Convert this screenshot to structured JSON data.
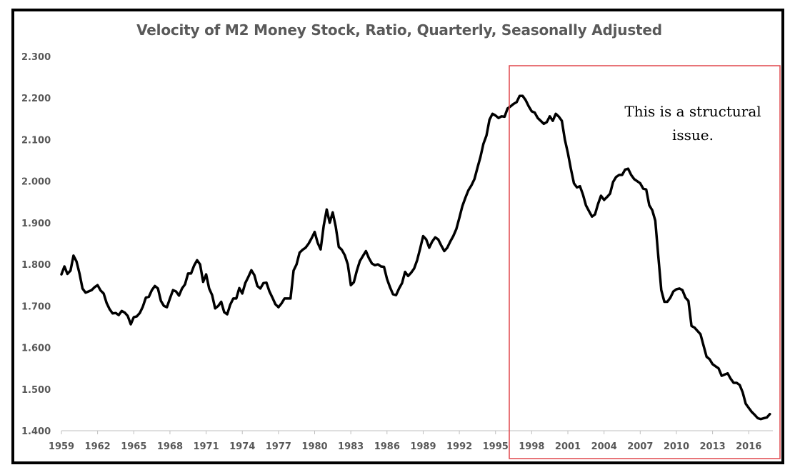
{
  "chart_data": {
    "type": "line",
    "title": "Velocity of M2 Money Stock, Ratio, Quarterly, Seasonally Adjusted",
    "xlabel": "",
    "ylabel": "",
    "xlim": [
      1959,
      2018
    ],
    "ylim": [
      1.4,
      2.3
    ],
    "y_ticks": [
      "1.400",
      "1.500",
      "1.600",
      "1.700",
      "1.800",
      "1.900",
      "2.000",
      "2.100",
      "2.200",
      "2.300"
    ],
    "y_tick_values": [
      1.4,
      1.5,
      1.6,
      1.7,
      1.8,
      1.9,
      2.0,
      2.1,
      2.2,
      2.3
    ],
    "x_ticks": [
      "1959",
      "1962",
      "1965",
      "1968",
      "1971",
      "1974",
      "1977",
      "1980",
      "1983",
      "1986",
      "1989",
      "1992",
      "1995",
      "1998",
      "2001",
      "2004",
      "2007",
      "2010",
      "2013",
      "2016"
    ],
    "x_tick_values": [
      1959,
      1962,
      1965,
      1968,
      1971,
      1974,
      1977,
      1980,
      1983,
      1986,
      1989,
      1992,
      1995,
      1998,
      2001,
      2004,
      2007,
      2010,
      2013,
      2016
    ],
    "grid": false,
    "series": [
      {
        "name": "Velocity of M2 Money Stock",
        "color": "#000000",
        "x": [
          1959.0,
          1959.25,
          1959.5,
          1959.75,
          1960.0,
          1960.25,
          1960.5,
          1960.75,
          1961.0,
          1961.25,
          1961.5,
          1961.75,
          1962.0,
          1962.25,
          1962.5,
          1962.75,
          1963.0,
          1963.25,
          1963.5,
          1963.75,
          1964.0,
          1964.25,
          1964.5,
          1964.75,
          1965.0,
          1965.25,
          1965.5,
          1965.75,
          1966.0,
          1966.25,
          1966.5,
          1966.75,
          1967.0,
          1967.25,
          1967.5,
          1967.75,
          1968.0,
          1968.25,
          1968.5,
          1968.75,
          1969.0,
          1969.25,
          1969.5,
          1969.75,
          1970.0,
          1970.25,
          1970.5,
          1970.75,
          1971.0,
          1971.25,
          1971.5,
          1971.75,
          1972.0,
          1972.25,
          1972.5,
          1972.75,
          1973.0,
          1973.25,
          1973.5,
          1973.75,
          1974.0,
          1974.25,
          1974.5,
          1974.75,
          1975.0,
          1975.25,
          1975.5,
          1975.75,
          1976.0,
          1976.25,
          1976.5,
          1976.75,
          1977.0,
          1977.25,
          1977.5,
          1977.75,
          1978.0,
          1978.25,
          1978.5,
          1978.75,
          1979.0,
          1979.25,
          1979.5,
          1979.75,
          1980.0,
          1980.25,
          1980.5,
          1980.75,
          1981.0,
          1981.25,
          1981.5,
          1981.75,
          1982.0,
          1982.25,
          1982.5,
          1982.75,
          1983.0,
          1983.25,
          1983.5,
          1983.75,
          1984.0,
          1984.25,
          1984.5,
          1984.75,
          1985.0,
          1985.25,
          1985.5,
          1985.75,
          1986.0,
          1986.25,
          1986.5,
          1986.75,
          1987.0,
          1987.25,
          1987.5,
          1987.75,
          1988.0,
          1988.25,
          1988.5,
          1988.75,
          1989.0,
          1989.25,
          1989.5,
          1989.75,
          1990.0,
          1990.25,
          1990.5,
          1990.75,
          1991.0,
          1991.25,
          1991.5,
          1991.75,
          1992.0,
          1992.25,
          1992.5,
          1992.75,
          1993.0,
          1993.25,
          1993.5,
          1993.75,
          1994.0,
          1994.25,
          1994.5,
          1994.75,
          1995.0,
          1995.25,
          1995.5,
          1995.75,
          1996.0,
          1996.25,
          1996.5,
          1996.75,
          1997.0,
          1997.25,
          1997.5,
          1997.75,
          1998.0,
          1998.25,
          1998.5,
          1998.75,
          1999.0,
          1999.25,
          1999.5,
          1999.75,
          2000.0,
          2000.25,
          2000.5,
          2000.75,
          2001.0,
          2001.25,
          2001.5,
          2001.75,
          2002.0,
          2002.25,
          2002.5,
          2002.75,
          2003.0,
          2003.25,
          2003.5,
          2003.75,
          2004.0,
          2004.25,
          2004.5,
          2004.75,
          2005.0,
          2005.25,
          2005.5,
          2005.75,
          2006.0,
          2006.25,
          2006.5,
          2006.75,
          2007.0,
          2007.25,
          2007.5,
          2007.75,
          2008.0,
          2008.25,
          2008.5,
          2008.75,
          2009.0,
          2009.25,
          2009.5,
          2009.75,
          2010.0,
          2010.25,
          2010.5,
          2010.75,
          2011.0,
          2011.25,
          2011.5,
          2011.75,
          2012.0,
          2012.25,
          2012.5,
          2012.75,
          2013.0,
          2013.25,
          2013.5,
          2013.75,
          2014.0,
          2014.25,
          2014.5,
          2014.75,
          2015.0,
          2015.25,
          2015.5,
          2015.75,
          2016.0,
          2016.25,
          2016.5,
          2016.75,
          2017.0,
          2017.25,
          2017.5,
          2017.75
        ],
        "values": [
          1.776,
          1.795,
          1.777,
          1.785,
          1.821,
          1.807,
          1.778,
          1.742,
          1.732,
          1.735,
          1.738,
          1.745,
          1.75,
          1.737,
          1.73,
          1.707,
          1.692,
          1.682,
          1.683,
          1.678,
          1.688,
          1.684,
          1.676,
          1.656,
          1.673,
          1.675,
          1.683,
          1.698,
          1.72,
          1.722,
          1.738,
          1.748,
          1.742,
          1.712,
          1.7,
          1.697,
          1.718,
          1.738,
          1.735,
          1.725,
          1.742,
          1.752,
          1.778,
          1.778,
          1.797,
          1.81,
          1.8,
          1.758,
          1.776,
          1.742,
          1.726,
          1.694,
          1.7,
          1.71,
          1.685,
          1.68,
          1.703,
          1.718,
          1.718,
          1.743,
          1.73,
          1.755,
          1.77,
          1.786,
          1.774,
          1.748,
          1.742,
          1.755,
          1.756,
          1.735,
          1.72,
          1.704,
          1.697,
          1.706,
          1.718,
          1.718,
          1.718,
          1.785,
          1.8,
          1.828,
          1.835,
          1.84,
          1.85,
          1.863,
          1.878,
          1.852,
          1.836,
          1.893,
          1.932,
          1.9,
          1.925,
          1.89,
          1.842,
          1.835,
          1.822,
          1.8,
          1.75,
          1.757,
          1.785,
          1.808,
          1.82,
          1.832,
          1.815,
          1.802,
          1.798,
          1.8,
          1.795,
          1.794,
          1.765,
          1.745,
          1.728,
          1.726,
          1.742,
          1.755,
          1.782,
          1.772,
          1.78,
          1.79,
          1.81,
          1.838,
          1.868,
          1.86,
          1.84,
          1.855,
          1.865,
          1.86,
          1.845,
          1.832,
          1.84,
          1.855,
          1.868,
          1.885,
          1.912,
          1.94,
          1.96,
          1.978,
          1.99,
          2.005,
          2.032,
          2.058,
          2.09,
          2.11,
          2.148,
          2.162,
          2.158,
          2.152,
          2.156,
          2.155,
          2.175,
          2.18,
          2.186,
          2.19,
          2.205,
          2.205,
          2.195,
          2.18,
          2.168,
          2.165,
          2.152,
          2.145,
          2.138,
          2.142,
          2.156,
          2.145,
          2.162,
          2.155,
          2.145,
          2.1,
          2.068,
          2.03,
          1.995,
          1.985,
          1.988,
          1.968,
          1.942,
          1.928,
          1.915,
          1.92,
          1.945,
          1.965,
          1.955,
          1.962,
          1.97,
          1.998,
          2.01,
          2.015,
          2.015,
          2.028,
          2.03,
          2.015,
          2.005,
          2.0,
          1.995,
          1.982,
          1.98,
          1.942,
          1.93,
          1.905,
          1.82,
          1.738,
          1.71,
          1.71,
          1.72,
          1.735,
          1.74,
          1.742,
          1.738,
          1.72,
          1.712,
          1.652,
          1.648,
          1.64,
          1.632,
          1.605,
          1.578,
          1.572,
          1.56,
          1.555,
          1.55,
          1.532,
          1.535,
          1.538,
          1.525,
          1.515,
          1.515,
          1.51,
          1.492,
          1.465,
          1.455,
          1.445,
          1.438,
          1.43,
          1.428,
          1.43,
          1.432,
          1.44
        ]
      }
    ],
    "annotations": [
      {
        "id": "structural-note",
        "lines": [
          "This is a structural",
          "issue."
        ],
        "box_color": "#e0474c"
      }
    ]
  }
}
